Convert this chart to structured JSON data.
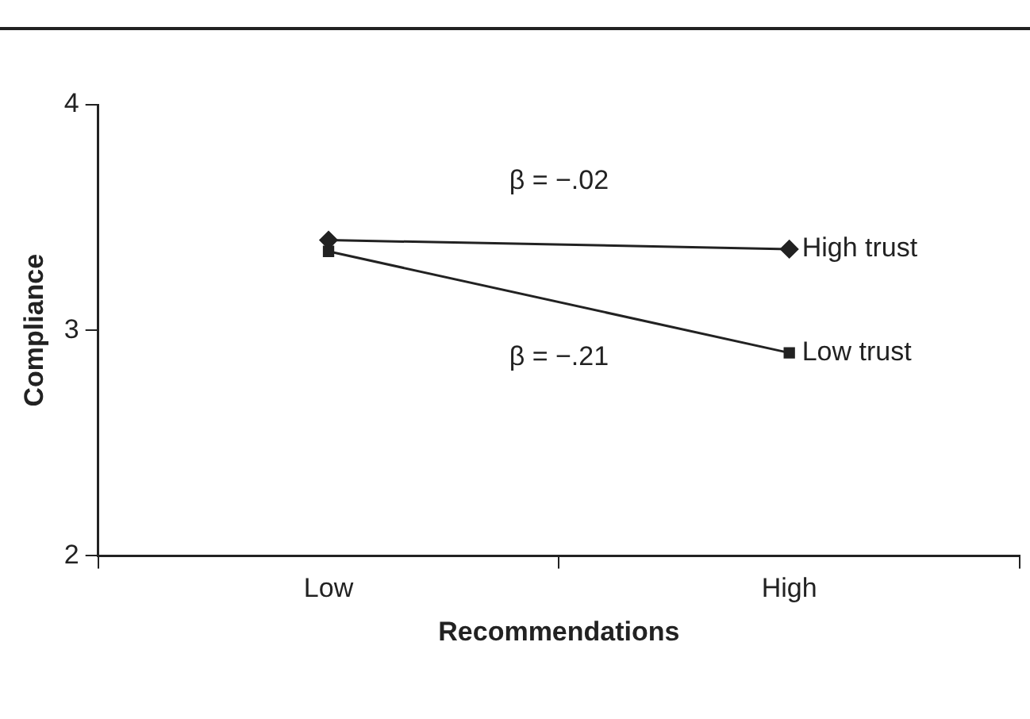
{
  "chart_data": {
    "type": "line",
    "xlabel": "Recommendations",
    "ylabel": "Compliance",
    "categories": [
      "Low",
      "High"
    ],
    "series": [
      {
        "name": "High trust",
        "color": "#222222",
        "marker": "diamond",
        "values": [
          3.4,
          3.36
        ]
      },
      {
        "name": "Low trust",
        "color": "#222222",
        "marker": "square",
        "values": [
          3.35,
          2.9
        ]
      }
    ],
    "ylim": [
      2,
      4
    ],
    "yticks": [
      2,
      3,
      4
    ],
    "grid": false,
    "legend": false,
    "annotations": [
      "β = −.02",
      "β = −.21"
    ]
  }
}
